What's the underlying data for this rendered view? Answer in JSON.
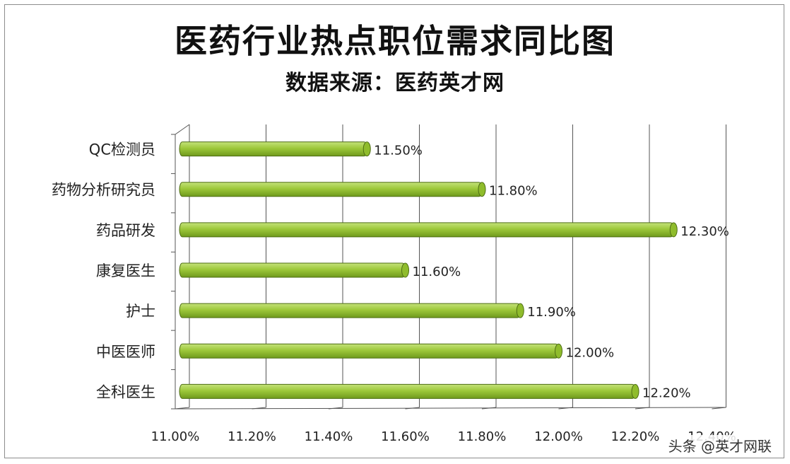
{
  "chart_data": {
    "type": "bar",
    "orientation": "horizontal",
    "title": "医药行业热点职位需求同比图",
    "subtitle": "数据来源：医药英才网",
    "categories": [
      "QC检测员",
      "药物分析研究员",
      "药品研发",
      "康复医生",
      "护士",
      "中医医师",
      "全科医生"
    ],
    "values": [
      11.5,
      11.8,
      12.3,
      11.6,
      11.9,
      12.0,
      12.2
    ],
    "data_labels": [
      "11.50%",
      "11.80%",
      "12.30%",
      "11.60%",
      "11.90%",
      "12.00%",
      "12.20%"
    ],
    "xlim": [
      11.0,
      12.4
    ],
    "x_ticks": [
      "11.00%",
      "11.20%",
      "11.40%",
      "11.60%",
      "11.80%",
      "12.00%",
      "12.20%",
      "12.40%"
    ],
    "grid": true,
    "bar_color": "#9dc83a",
    "bar_edge_color": "#4e6e14"
  },
  "watermark": "头条 @英才网联"
}
